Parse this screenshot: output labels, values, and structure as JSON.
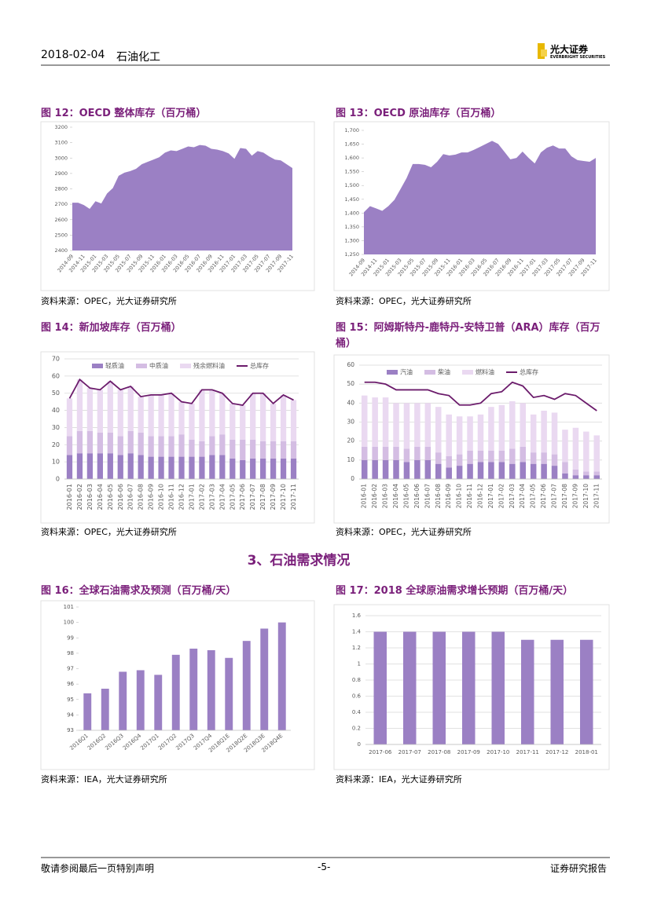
{
  "header": {
    "date": "2018-02-04",
    "sector": "石油化工",
    "logo_cn": "光大证券",
    "logo_en": "EVERBRIGHT SECURITIES"
  },
  "section_title": "3、石油需求情况",
  "footer": {
    "disclaimer": "敬请参阅最后一页特别声明",
    "page": "-5-",
    "report_type": "证券研究报告"
  },
  "chart_data": [
    {
      "type": "area",
      "caption": "图 12：OECD 整体库存（百万桶）",
      "source": "资料来源：OPEC，光大证券研究所",
      "categories": [
        "2014-09",
        null,
        "2014-11",
        null,
        "2015-01",
        null,
        "2015-03",
        null,
        "2015-05",
        null,
        "2015-07",
        null,
        "2015-09",
        null,
        "2015-11",
        null,
        "2016-01",
        null,
        "2016-03",
        null,
        "2016-05",
        null,
        "2016-07",
        null,
        "2016-09",
        null,
        "2016-11",
        null,
        "2017-01",
        null,
        "2017-03",
        null,
        "2017-05",
        null,
        "2017-07",
        null,
        "2017-09",
        null,
        "2017-11"
      ],
      "values": [
        2710,
        2710,
        2695,
        2670,
        2720,
        2705,
        2770,
        2805,
        2885,
        2905,
        2915,
        2930,
        2960,
        2975,
        2990,
        3005,
        3035,
        3050,
        3045,
        3060,
        3075,
        3070,
        3085,
        3080,
        3060,
        3055,
        3045,
        3030,
        2995,
        3065,
        3060,
        3015,
        3045,
        3035,
        3010,
        2990,
        2985,
        2960,
        2935
      ],
      "color": "#9b80c4",
      "ylim": [
        2400,
        3200
      ],
      "yticks": [
        2400,
        2500,
        2600,
        2700,
        2800,
        2900,
        3000,
        3100,
        3200
      ],
      "grid": false
    },
    {
      "type": "area",
      "caption": "图 13：OECD 原油库存（百万桶）",
      "source": "资料来源：OPEC，光大证券研究所",
      "categories": [
        "2014-09",
        null,
        "2014-11",
        null,
        "2015-01",
        null,
        "2015-03",
        null,
        "2015-05",
        null,
        "2015-07",
        null,
        "2015-09",
        null,
        "2015-11",
        null,
        "2016-01",
        null,
        "2016-03",
        null,
        "2016-05",
        null,
        "2016-07",
        null,
        "2016-09",
        null,
        "2016-11",
        null,
        "2017-01",
        null,
        "2017-03",
        null,
        "2017-05",
        null,
        "2017-07",
        null,
        "2017-09",
        null,
        "2017-11"
      ],
      "values": [
        1403,
        1425,
        1417,
        1408,
        1425,
        1448,
        1487,
        1527,
        1578,
        1578,
        1575,
        1566,
        1586,
        1614,
        1609,
        1612,
        1620,
        1620,
        1629,
        1640,
        1651,
        1662,
        1651,
        1623,
        1595,
        1600,
        1623,
        1600,
        1580,
        1620,
        1637,
        1645,
        1634,
        1634,
        1606,
        1592,
        1589,
        1586,
        1600
      ],
      "color": "#9b80c4",
      "ylim": [
        1250,
        1700
      ],
      "yticks": [
        {
          "value": 1250,
          "label": "1,250"
        },
        {
          "value": 1300,
          "label": "1,300"
        },
        {
          "value": 1350,
          "label": "1,350"
        },
        {
          "value": 1400,
          "label": "1,400"
        },
        {
          "value": 1450,
          "label": "1,450"
        },
        {
          "value": 1500,
          "label": "1,500"
        },
        {
          "value": 1550,
          "label": "1,550"
        },
        {
          "value": 1600,
          "label": "1,600"
        },
        {
          "value": 1650,
          "label": "1,650"
        },
        {
          "value": 1700,
          "label": "1,700"
        }
      ],
      "grid": false
    },
    {
      "type": "combo",
      "caption": "图 14：新加坡库存（百万桶）",
      "source": "资料来源：OPEC，光大证券研究所",
      "categories": [
        "2016-01",
        "2016-02",
        "2016-03",
        "2016-04",
        "2016-05",
        "2016-06",
        "2016-07",
        "2016-08",
        "2016-09",
        "2016-10",
        "2016-11",
        "2016-12",
        "2017-01",
        "2017-02",
        "2017-03",
        "2017-04",
        "2017-05",
        "2017-06",
        "2017-07",
        "2017-08",
        "2017-09",
        "2017-10",
        "2017-11"
      ],
      "series": [
        {
          "name": "轻质油",
          "color": "#9b80c4",
          "type": "bar",
          "values": [
            14,
            15,
            15,
            15,
            15,
            14,
            15,
            14,
            13,
            13,
            13,
            13,
            13,
            13,
            14,
            14,
            12,
            11,
            12,
            12,
            12,
            12,
            12
          ]
        },
        {
          "name": "中质油",
          "color": "#d4bde3",
          "type": "bar",
          "values": [
            11,
            13,
            13,
            12,
            12,
            11,
            13,
            13,
            12,
            12,
            12,
            13,
            10,
            9,
            11,
            12,
            11,
            12,
            11,
            10,
            10,
            10,
            10
          ]
        },
        {
          "name": "残余燃料油",
          "color": "#ead9f1",
          "type": "bar",
          "values": [
            22,
            30,
            25,
            25,
            30,
            27,
            26,
            21,
            24,
            24,
            25,
            19,
            21,
            30,
            27,
            24,
            21,
            20,
            27,
            28,
            22,
            27,
            24
          ]
        },
        {
          "name": "总库存",
          "color": "#6b1b6b",
          "type": "line",
          "values": [
            47,
            58,
            53,
            52,
            57,
            52,
            54,
            48,
            49,
            49,
            50,
            45,
            44,
            52,
            52,
            50,
            44,
            43,
            50,
            50,
            44,
            49,
            46
          ]
        }
      ],
      "ylim": [
        0,
        70
      ],
      "yticks": [
        0,
        10,
        20,
        30,
        40,
        50,
        60,
        70
      ],
      "grid": true,
      "legend": "top"
    },
    {
      "type": "combo",
      "caption": "图 15：阿姆斯特丹-鹿特丹-安特卫普（ARA）库存（百万桶）",
      "source": "资料来源：OPEC，光大证券研究所",
      "categories": [
        "2016-01",
        "2016-02",
        "2016-03",
        "2016-04",
        "2016-05",
        "2016-06",
        "2016-07",
        "2016-08",
        "2016-09",
        "2016-10",
        "2016-11",
        "2016-12",
        "2017-01",
        "2017-02",
        "2017-03",
        "2017-04",
        "2017-05",
        "2017-06",
        "2017-07",
        "2017-08",
        "2017-09",
        "2017-10",
        "2017-11"
      ],
      "series": [
        {
          "name": "汽油",
          "color": "#9b80c4",
          "type": "bar",
          "values": [
            10,
            10,
            10,
            10,
            9,
            10,
            10,
            8,
            6,
            7,
            8,
            9,
            9,
            9,
            8,
            9,
            8,
            8,
            7,
            3,
            2,
            2,
            2
          ]
        },
        {
          "name": "柴油",
          "color": "#d4bde3",
          "type": "bar",
          "values": [
            7,
            7,
            7,
            7,
            7,
            7,
            7,
            6,
            6,
            6,
            7,
            6,
            6,
            6,
            8,
            8,
            6,
            6,
            6,
            6,
            3,
            2,
            2
          ]
        },
        {
          "name": "燃料油",
          "color": "#ead9f1",
          "type": "bar",
          "values": [
            27,
            26,
            26,
            23,
            24,
            23,
            23,
            24,
            22,
            20,
            18,
            19,
            23,
            24,
            25,
            23,
            20,
            22,
            22,
            17,
            22,
            21,
            19
          ]
        },
        {
          "name": "总库存",
          "color": "#6b1b6b",
          "type": "line",
          "values": [
            51,
            51,
            50,
            47,
            47,
            47,
            47,
            45,
            44,
            39,
            39,
            40,
            45,
            46,
            51,
            49,
            43,
            44,
            42,
            45,
            44,
            40,
            36
          ]
        }
      ],
      "ylim": [
        0,
        60
      ],
      "yticks": [
        0,
        10,
        20,
        30,
        40,
        50,
        60
      ],
      "grid": true,
      "legend": "top"
    },
    {
      "type": "bar",
      "caption": "图 16：全球石油需求及预测（百万桶/天）",
      "source": "资料来源：IEA，光大证券研究所",
      "categories": [
        "2016Q1",
        "2016Q2",
        "2016Q3",
        "2016Q4",
        "2017Q1",
        "2017Q2",
        "2017Q3",
        "2017Q4",
        "2018Q1E",
        "2018Q2E",
        "2018Q3E",
        "2018Q4E"
      ],
      "values": [
        95.4,
        95.7,
        96.8,
        96.9,
        96.6,
        97.9,
        98.3,
        98.2,
        97.7,
        98.8,
        99.6,
        100.0
      ],
      "color": "#9b80c4",
      "ylim": [
        93,
        101
      ],
      "yticks": [
        93,
        94,
        95,
        96,
        97,
        98,
        99,
        100,
        101
      ],
      "grid": false
    },
    {
      "type": "bar",
      "caption": "图 17：2018 全球原油需求增长预期（百万桶/天）",
      "source": "资料来源：IEA，光大证券研究所",
      "categories": [
        "2017-06",
        "2017-07",
        "2017-08",
        "2017-09",
        "2017-10",
        "2017-11",
        "2017-12",
        "2018-01"
      ],
      "values": [
        1.4,
        1.4,
        1.4,
        1.4,
        1.4,
        1.3,
        1.3,
        1.3
      ],
      "color": "#9b80c4",
      "ylim": [
        0,
        1.6
      ],
      "yticks": [
        0,
        0.2,
        0.4,
        0.6,
        0.8,
        1,
        1.2,
        1.4,
        1.6
      ],
      "grid": true
    }
  ]
}
